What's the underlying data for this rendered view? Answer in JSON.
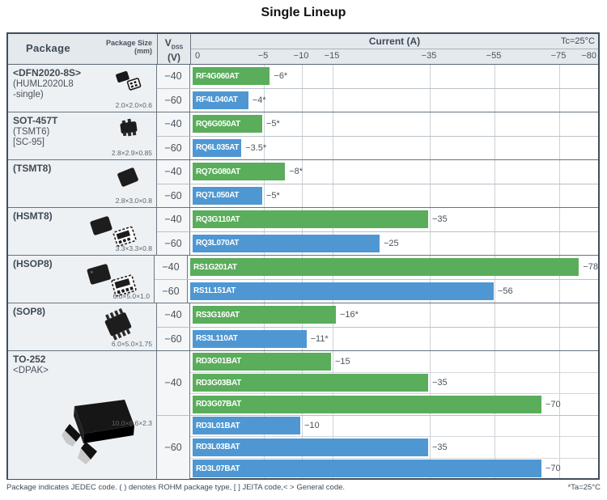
{
  "title": "Single Lineup",
  "header": {
    "package": "Package",
    "package_size_line1": "Package Size",
    "package_size_line2": "(mm)",
    "vdss_main": "V",
    "vdss_sub": "DSS",
    "vdss_unit": "(V)",
    "current_label": "Current (A)",
    "condition": "Tc=25°C"
  },
  "footer": {
    "note": "Package indicates JEDEC code. ( ) denotes ROHM package type, [ ] JEITA code,< > General code.",
    "asterisk_note": "*Ta=25°C"
  },
  "colors": {
    "bar_vdss40": "#5aad5b",
    "bar_vdss60": "#4e97d3",
    "header_bg": "#e4e9ed",
    "border_dark": "#3e4e5e"
  },
  "chart_data": {
    "type": "bar",
    "orientation": "horizontal",
    "title": "Single Lineup",
    "xlabel": "Current (A)",
    "condition": "Tc=25°C",
    "xlim": [
      0,
      -80
    ],
    "grid": true,
    "axis_ticks": [
      0,
      -5,
      -10,
      -15,
      -35,
      -55,
      -75,
      -80
    ],
    "tick_labels": [
      "0",
      "−5",
      "−10",
      "−15",
      "−35",
      "−55",
      "−75",
      "−80"
    ],
    "legend": {
      "vdss40_color_meaning": "VDSS −40 V (green)",
      "vdss60_color_meaning": "VDSS −60 V (blue)"
    },
    "groups": [
      {
        "package_lines": [
          "<DFN2020-8S>",
          "(HUML2020L8",
          " -single)"
        ],
        "size": "2.0×2.0×0.6",
        "icon": "dfn2020-chip-icon",
        "rows": [
          {
            "vdss": "−40",
            "bars": [
              {
                "part": "RF4G060AT",
                "current_a": -6,
                "label": "−6*"
              }
            ]
          },
          {
            "vdss": "−60",
            "bars": [
              {
                "part": "RF4L040AT",
                "current_a": -4,
                "label": "−4*"
              }
            ]
          }
        ]
      },
      {
        "package_lines": [
          "SOT-457T",
          "(TSMT6)",
          "[SC-95]"
        ],
        "size": "2.8×2.9×0.85",
        "icon": "sot457t-chip-icon",
        "rows": [
          {
            "vdss": "−40",
            "bars": [
              {
                "part": "RQ6G050AT",
                "current_a": -5,
                "label": "−5*"
              }
            ]
          },
          {
            "vdss": "−60",
            "bars": [
              {
                "part": "RQ6L035AT",
                "current_a": -3.5,
                "label": "−3.5*"
              }
            ]
          }
        ]
      },
      {
        "package_lines": [
          "(TSMT8)"
        ],
        "size": "2.8×3.0×0.8",
        "icon": "tsmt8-chip-icon",
        "rows": [
          {
            "vdss": "−40",
            "bars": [
              {
                "part": "RQ7G080AT",
                "current_a": -8,
                "label": "−8*"
              }
            ]
          },
          {
            "vdss": "−60",
            "bars": [
              {
                "part": "RQ7L050AT",
                "current_a": -5,
                "label": "−5*"
              }
            ]
          }
        ]
      },
      {
        "package_lines": [
          "(HSMT8)"
        ],
        "size": "3.3×3.3×0.8",
        "icon": "hsmt8-chip-icon",
        "rows": [
          {
            "vdss": "−40",
            "bars": [
              {
                "part": "RQ3G110AT",
                "current_a": -35,
                "label": "−35"
              }
            ]
          },
          {
            "vdss": "−60",
            "bars": [
              {
                "part": "RQ3L070AT",
                "current_a": -25,
                "label": "−25"
              }
            ]
          }
        ]
      },
      {
        "package_lines": [
          "(HSOP8)"
        ],
        "size": "6.0×5.0×1.0",
        "icon": "hsop8-chip-icon",
        "rows": [
          {
            "vdss": "−40",
            "bars": [
              {
                "part": "RS1G201AT",
                "current_a": -78,
                "label": "−78"
              }
            ]
          },
          {
            "vdss": "−60",
            "bars": [
              {
                "part": "RS1L151AT",
                "current_a": -56,
                "label": "−56"
              }
            ]
          }
        ]
      },
      {
        "package_lines": [
          "(SOP8)"
        ],
        "size": "6.0×5.0×1.75",
        "icon": "sop8-chip-icon",
        "rows": [
          {
            "vdss": "−40",
            "bars": [
              {
                "part": "RS3G160AT",
                "current_a": -16,
                "label": "−16*"
              }
            ]
          },
          {
            "vdss": "−60",
            "bars": [
              {
                "part": "RS3L110AT",
                "current_a": -11,
                "label": "−11*"
              }
            ]
          }
        ]
      },
      {
        "package_lines": [
          "TO-252",
          "<DPAK>"
        ],
        "size": "10.0×6.6×2.3",
        "icon": "to252-chip-icon",
        "rows": [
          {
            "vdss": "−40",
            "bars": [
              {
                "part": "RD3G01BAT",
                "current_a": -15,
                "label": "−15"
              },
              {
                "part": "RD3G03BAT",
                "current_a": -35,
                "label": "−35"
              },
              {
                "part": "RD3G07BAT",
                "current_a": -70,
                "label": "−70"
              }
            ]
          },
          {
            "vdss": "−60",
            "bars": [
              {
                "part": "RD3L01BAT",
                "current_a": -10,
                "label": "−10"
              },
              {
                "part": "RD3L03BAT",
                "current_a": -35,
                "label": "−35"
              },
              {
                "part": "RD3L07BAT",
                "current_a": -70,
                "label": "−70"
              }
            ]
          }
        ]
      }
    ]
  }
}
